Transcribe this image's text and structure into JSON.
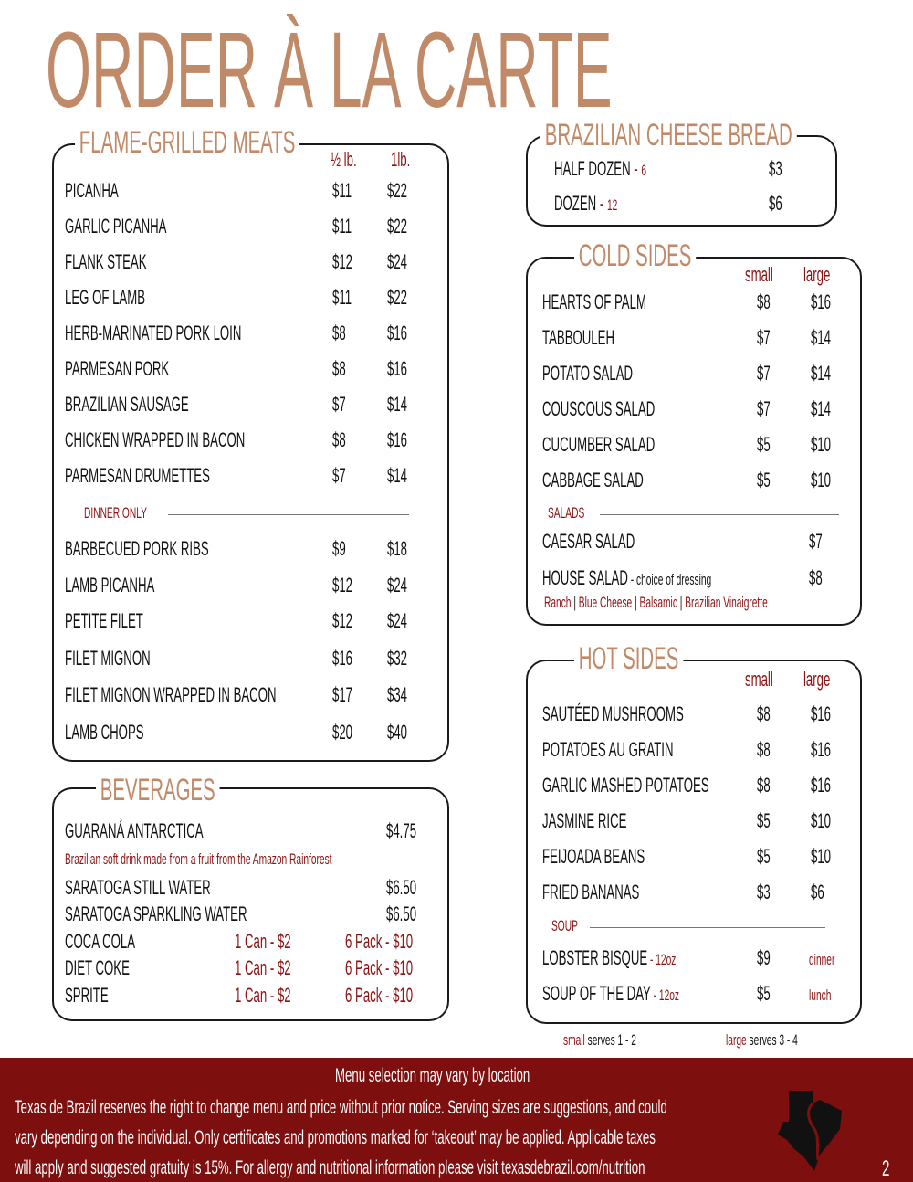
{
  "title": "ORDER À LA CARTE",
  "meats": {
    "title": "FLAME-GRILLED MEATS",
    "col1": "½ lb.",
    "col2": "1lb.",
    "items": [
      {
        "name": "PICANHA",
        "p1": "$11",
        "p2": "$22"
      },
      {
        "name": "GARLIC PICANHA",
        "p1": "$11",
        "p2": "$22"
      },
      {
        "name": "FLANK STEAK",
        "p1": "$12",
        "p2": "$24"
      },
      {
        "name": "LEG OF LAMB",
        "p1": "$11",
        "p2": "$22"
      },
      {
        "name": "HERB-MARINATED PORK LOIN",
        "p1": "$8",
        "p2": "$16"
      },
      {
        "name": "PARMESAN PORK",
        "p1": "$8",
        "p2": "$16"
      },
      {
        "name": "BRAZILIAN SAUSAGE",
        "p1": "$7",
        "p2": "$14"
      },
      {
        "name": "CHICKEN WRAPPED IN BACON",
        "p1": "$8",
        "p2": "$16"
      },
      {
        "name": "PARMESAN DRUMETTES",
        "p1": "$7",
        "p2": "$14"
      }
    ],
    "dinner_label": "DINNER ONLY",
    "dinner_items": [
      {
        "name": "BARBECUED PORK RIBS",
        "p1": "$9",
        "p2": "$18"
      },
      {
        "name": "LAMB PICANHA",
        "p1": "$12",
        "p2": "$24"
      },
      {
        "name": "PETITE FILET",
        "p1": "$12",
        "p2": "$24"
      },
      {
        "name": "FILET MIGNON",
        "p1": "$16",
        "p2": "$32"
      },
      {
        "name": "FILET MIGNON WRAPPED IN BACON",
        "p1": "$17",
        "p2": "$34"
      },
      {
        "name": "LAMB CHOPS",
        "p1": "$20",
        "p2": "$40"
      }
    ]
  },
  "beverages": {
    "title": "BEVERAGES",
    "guarana": {
      "name": "GUARANÁ ANTARCTICA",
      "price": "$4.75",
      "note": "Brazilian soft drink made from a fruit from the Amazon Rainforest"
    },
    "waters": [
      {
        "name": "SARATOGA STILL WATER",
        "price": "$6.50"
      },
      {
        "name": "SARATOGA SPARKLING WATER",
        "price": "$6.50"
      }
    ],
    "sodas": [
      {
        "name": "COCA COLA",
        "can": "1 Can",
        "can_price": "$2",
        "pack": "6 Pack",
        "pack_price": "$10"
      },
      {
        "name": "DIET COKE",
        "can": "1 Can",
        "can_price": "$2",
        "pack": "6 Pack",
        "pack_price": "$10"
      },
      {
        "name": "SPRITE",
        "can": "1 Can",
        "can_price": "$2",
        "pack": "6 Pack",
        "pack_price": "$10"
      }
    ]
  },
  "cheese_bread": {
    "title": "BRAZILIAN CHEESE BREAD",
    "items": [
      {
        "name": "HALF DOZEN",
        "qty": "6",
        "price": "$3"
      },
      {
        "name": "DOZEN",
        "qty": "12",
        "price": "$6"
      }
    ]
  },
  "cold_sides": {
    "title": "COLD SIDES",
    "col1": "small",
    "col2": "large",
    "items": [
      {
        "name": "HEARTS OF PALM",
        "p1": "$8",
        "p2": "$16"
      },
      {
        "name": "TABBOULEH",
        "p1": "$7",
        "p2": "$14"
      },
      {
        "name": "POTATO SALAD",
        "p1": "$7",
        "p2": "$14"
      },
      {
        "name": "COUSCOUS SALAD",
        "p1": "$7",
        "p2": "$14"
      },
      {
        "name": "CUCUMBER SALAD",
        "p1": "$5",
        "p2": "$10"
      },
      {
        "name": "CABBAGE SALAD",
        "p1": "$5",
        "p2": "$10"
      }
    ],
    "salads_label": "SALADS",
    "salads": [
      {
        "name": "CAESAR SALAD",
        "note": "",
        "price": "$7"
      },
      {
        "name": "HOUSE SALAD",
        "note": "choice of dressing",
        "price": "$8"
      }
    ],
    "dressings": [
      "Ranch",
      "Blue Cheese",
      "Balsamic",
      "Brazilian Vinaigrette"
    ]
  },
  "hot_sides": {
    "title": "HOT SIDES",
    "col1": "small",
    "col2": "large",
    "items": [
      {
        "name": "SAUTÉED MUSHROOMS",
        "p1": "$8",
        "p2": "$16"
      },
      {
        "name": "POTATOES AU GRATIN",
        "p1": "$8",
        "p2": "$16"
      },
      {
        "name": "GARLIC MASHED POTATOES",
        "p1": "$8",
        "p2": "$16"
      },
      {
        "name": "JASMINE RICE",
        "p1": "$5",
        "p2": "$10"
      },
      {
        "name": "FEIJOADA BEANS",
        "p1": "$5",
        "p2": "$10"
      },
      {
        "name": "FRIED BANANAS",
        "p1": "$3",
        "p2": "$6"
      }
    ],
    "soup_label": "SOUP",
    "soups": [
      {
        "name": "LOBSTER BISQUE",
        "size": "12oz",
        "price": "$9",
        "when": "dinner"
      },
      {
        "name": "SOUP OF THE DAY",
        "size": "12oz",
        "price": "$5",
        "when": "lunch"
      }
    ]
  },
  "serves": {
    "small_word": "small",
    "small_text": "serves 1 - 2",
    "large_word": "large",
    "large_text": "serves 3 - 4"
  },
  "footer": {
    "headline": "Menu selection may vary by location",
    "lines": [
      "Texas de Brazil reserves the right to change menu and price without prior notice. Serving sizes are suggestions, and could",
      "vary depending on the individual. Only certificates and promotions marked for ‘takeout’ may be applied. Applicable taxes",
      "will apply and suggested gratuity is 15%. For allergy and nutritional information please visit texasdebrazil.com/nutrition"
    ],
    "page_number": "2",
    "logo_text": "Texas de Brazil"
  },
  "colors": {
    "title": "#c08a68",
    "accent": "#8b1212",
    "footer_bg": "#7d0f0f"
  }
}
